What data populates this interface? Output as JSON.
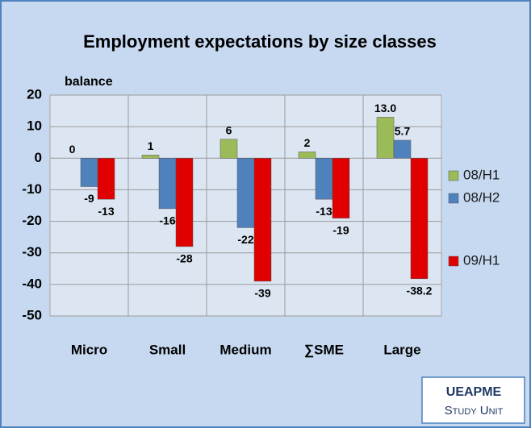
{
  "chart_data": {
    "type": "bar",
    "title": "Employment expectations by size classes",
    "ylabel": "balance",
    "categories": [
      "Micro",
      "Small",
      "Medium",
      "∑SME",
      "Large"
    ],
    "series": [
      {
        "name": "08/H1",
        "color": "#9bbb59",
        "values": [
          0,
          1,
          6,
          2,
          13
        ],
        "value_labels": [
          "0",
          "1",
          "6",
          "2",
          "13.0"
        ]
      },
      {
        "name": "08/H2",
        "color": "#4f81bd",
        "values": [
          -9,
          -16,
          -22,
          -13,
          5.7
        ]
      },
      {
        "name": "09/H1",
        "color": "#e00000",
        "values": [
          -13,
          -28,
          -39,
          -19,
          -38.2
        ]
      }
    ],
    "ylim": [
      -50,
      20
    ],
    "yticks": [
      -50,
      -40,
      -30,
      -20,
      -10,
      0,
      10,
      20
    ],
    "grid": true,
    "legend": "right"
  },
  "footer": {
    "org": "UEAPME",
    "unit": "Study Unit"
  }
}
